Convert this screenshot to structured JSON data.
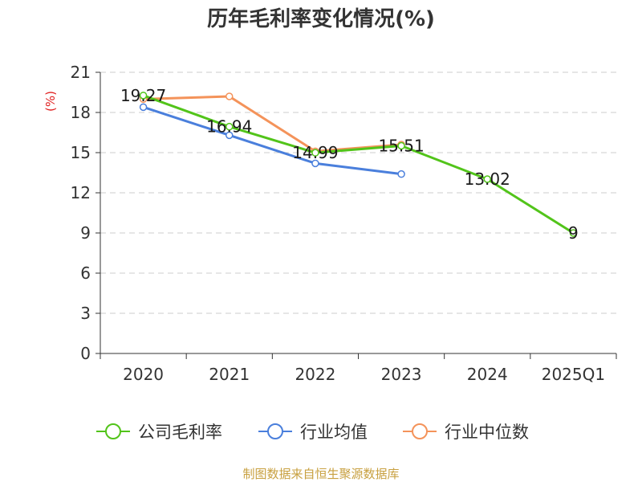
{
  "chart_data": {
    "type": "line",
    "title": "历年毛利率变化情况(%)",
    "ylabel": "(%)",
    "xlabel": "",
    "categories": [
      "2020",
      "2021",
      "2022",
      "2023",
      "2024",
      "2025Q1"
    ],
    "ylim": [
      0,
      21
    ],
    "yticks": [
      0,
      3,
      6,
      9,
      12,
      15,
      18,
      21
    ],
    "grid": true,
    "legend_position": "bottom",
    "series": [
      {
        "name": "公司毛利率",
        "color": "#52c41a",
        "values": [
          19.27,
          16.94,
          14.99,
          15.51,
          13.02,
          9
        ],
        "labels": [
          "19.27",
          "16.94",
          "14.99",
          "15.51",
          "13.02",
          "9"
        ]
      },
      {
        "name": "行业均值",
        "color": "#4a7fdc",
        "values": [
          18.4,
          16.3,
          14.2,
          13.4,
          null,
          null
        ]
      },
      {
        "name": "行业中位数",
        "color": "#f4935a",
        "values": [
          19.0,
          19.2,
          15.1,
          15.6,
          null,
          null
        ]
      }
    ]
  },
  "source_text": "制图数据来自恒生聚源数据库"
}
